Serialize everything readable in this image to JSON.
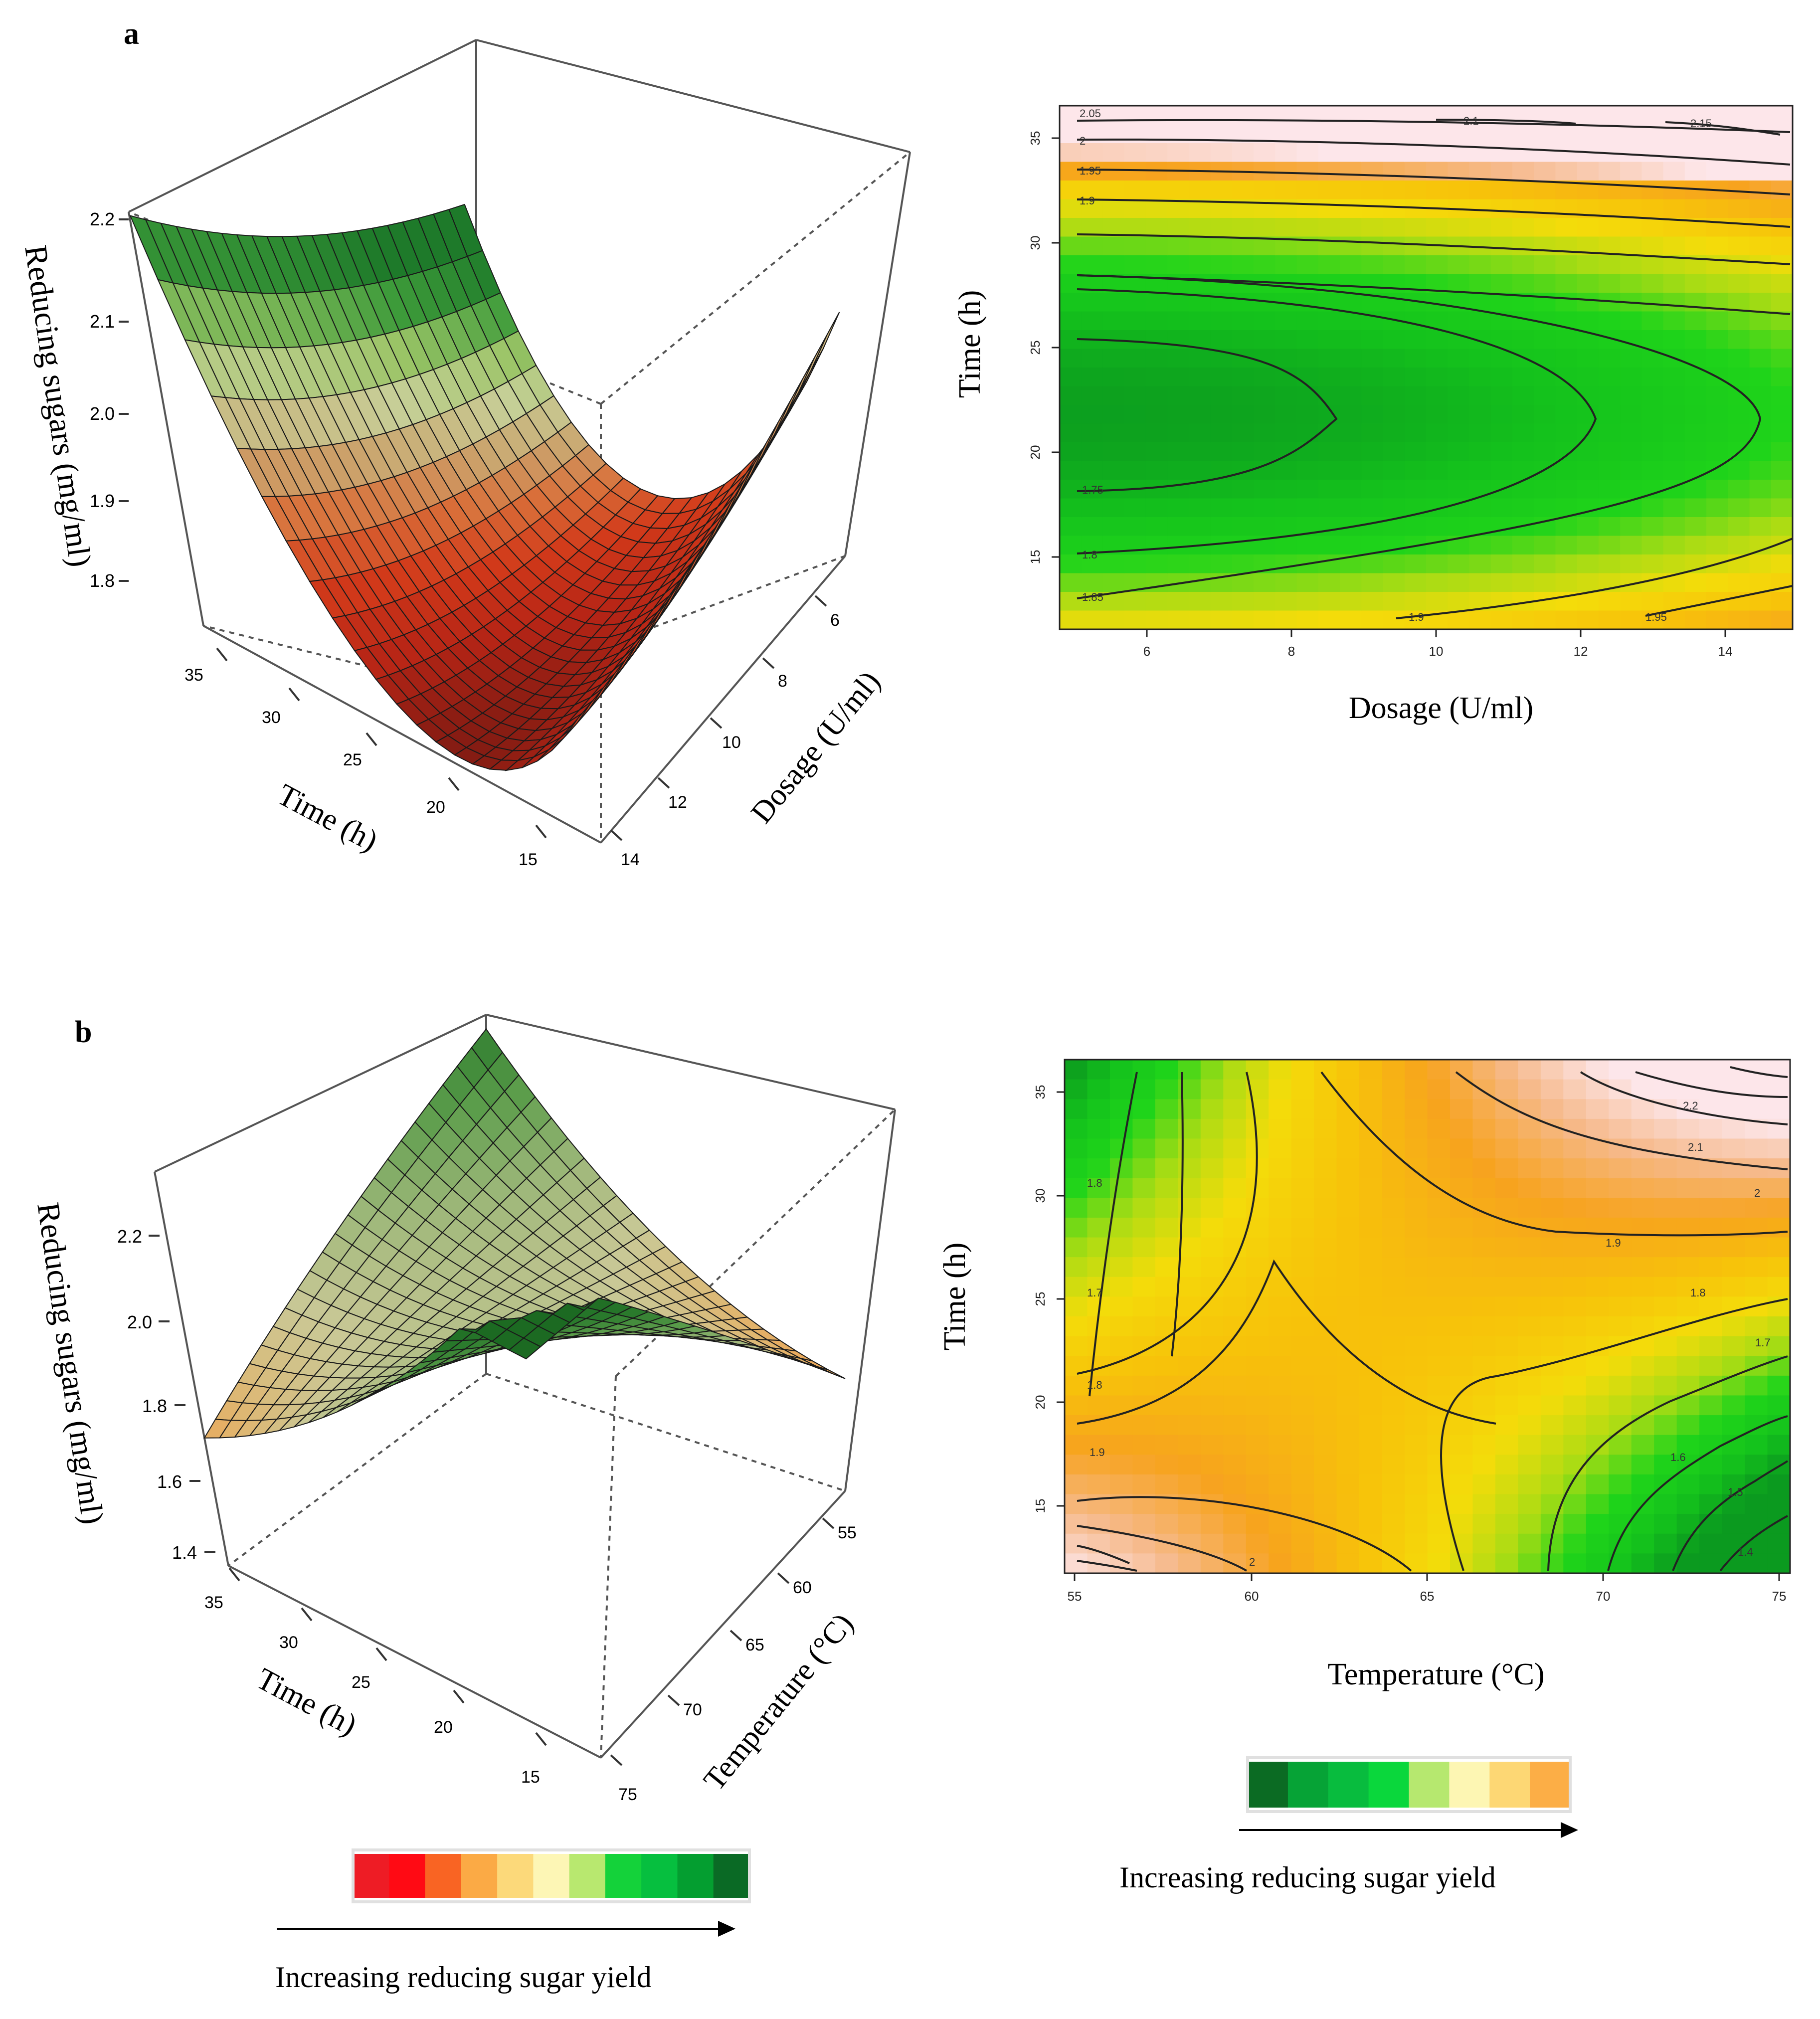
{
  "chart_data": [
    {
      "panel": "a",
      "type": "surface",
      "z_label": "Reducing sugars (mg/ml)",
      "x_label": "Time (h)",
      "y_label": "Dosage (U/ml)",
      "z_ticks": [
        "2.2",
        "2.1",
        "2.0",
        "1.9",
        "1.8"
      ],
      "x_ticks": [
        "35",
        "30",
        "25",
        "20",
        "15"
      ],
      "y_ticks": [
        "6",
        "8",
        "10",
        "12",
        "14"
      ],
      "z_range": [
        1.72,
        2.2
      ],
      "corner_values": {
        "time35_dose5": 2.2,
        "time15_dose15": 2.0,
        "minimum": 1.73
      }
    },
    {
      "panel": "a",
      "type": "contour",
      "xlabel": "Dosage (U/ml)",
      "ylabel": "Time (h)",
      "x_ticks": [
        "6",
        "8",
        "10",
        "12",
        "14"
      ],
      "y_ticks": [
        "15",
        "20",
        "25",
        "30",
        "35"
      ],
      "xlim": [
        4.8,
        15.2
      ],
      "ylim": [
        11.5,
        37
      ],
      "contour_labels": [
        "2.05",
        "2",
        "1.95",
        "1.9",
        "2.1",
        "2.15",
        "1.75",
        "1.8",
        "1.85",
        "1.9",
        "1.95"
      ]
    },
    {
      "panel": "b",
      "type": "surface",
      "z_label": "Reducing sugars (mg/ml)",
      "x_label": "Time (h)",
      "y_label": "Temperature (°C)",
      "z_ticks": [
        "2.2",
        "2.0",
        "1.8",
        "1.6",
        "1.4"
      ],
      "x_ticks": [
        "35",
        "30",
        "25",
        "20",
        "15"
      ],
      "y_ticks": [
        "55",
        "60",
        "65",
        "70",
        "75"
      ],
      "z_range": [
        1.32,
        2.35
      ]
    },
    {
      "panel": "b",
      "type": "contour",
      "xlabel": "Temperature (°C)",
      "ylabel": "Time (h)",
      "x_ticks": [
        "55",
        "60",
        "65",
        "70",
        "75"
      ],
      "y_ticks": [
        "15",
        "20",
        "25",
        "30",
        "35"
      ],
      "xlim": [
        54.8,
        75.3
      ],
      "ylim": [
        11.5,
        37
      ],
      "contour_labels": [
        "2.2",
        "2.1",
        "2",
        "1.9",
        "1.8",
        "1.7",
        "1.6",
        "1.5",
        "1.4",
        "1.8",
        "1.7",
        "1.8",
        "1.9",
        "2"
      ]
    }
  ],
  "panel_labels": {
    "a": "a",
    "b": "b"
  },
  "legends": {
    "surface": {
      "caption": "Increasing reducing sugar yield",
      "colors": [
        "#ee1c25",
        "#ff0a14",
        "#f96423",
        "#fbaa45",
        "#fcd97a",
        "#fdf6b5",
        "#b8e86f",
        "#14d23a",
        "#06bf3f",
        "#049e30",
        "#0a6a25"
      ]
    },
    "contour": {
      "caption": "Increasing reducing sugar yield",
      "colors": [
        "#0b6b23",
        "#06a336",
        "#08bc3e",
        "#0ad73c",
        "#b6e86f",
        "#fdf6b3",
        "#fdd774",
        "#fcae46"
      ]
    }
  }
}
